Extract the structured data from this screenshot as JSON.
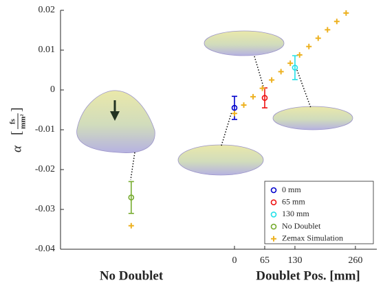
{
  "chart_data": {
    "type": "errorbar-scatter",
    "ylabel_symbol": "α",
    "ylabel_unit_numerator": "fs",
    "ylabel_unit_denominator": "mm²",
    "xlabel_left": "No Doublet",
    "xlabel_right": "Doublet Pos. [mm]",
    "xlim": [
      -374,
      306
    ],
    "xticks": [
      0,
      65,
      130,
      260
    ],
    "ylim": [
      -0.04,
      0.02
    ],
    "yticks": [
      0.02,
      0.01,
      0,
      -0.01,
      -0.02,
      -0.03,
      -0.04
    ],
    "legend": "bottom-right",
    "series": [
      {
        "name": "0 mm",
        "color": "#0000cc",
        "marker": "circle",
        "x": [
          0
        ],
        "values": [
          -0.0045
        ],
        "errors": [
          0.0029
        ]
      },
      {
        "name": "65 mm",
        "color": "#ee1111",
        "marker": "circle",
        "x": [
          65
        ],
        "values": [
          -0.002
        ],
        "errors": [
          0.0025
        ]
      },
      {
        "name": "130 mm",
        "color": "#22e0e8",
        "marker": "circle",
        "x": [
          130
        ],
        "values": [
          0.0056
        ],
        "errors": [
          0.003
        ]
      },
      {
        "name": "No Doublet",
        "color": "#77ac30",
        "marker": "circle",
        "x": [
          -222
        ],
        "values": [
          -0.027
        ],
        "errors": [
          0.004
        ]
      },
      {
        "name": "Zemax Simulation",
        "color": "#edb120",
        "marker": "plus",
        "x": [
          -222,
          0,
          20,
          40,
          60,
          80,
          100,
          120,
          140,
          160,
          180,
          200,
          220,
          240
        ],
        "values": [
          -0.0341,
          -0.0059,
          -0.0038,
          -0.0017,
          0.0004,
          0.0025,
          0.0046,
          0.0067,
          0.0088,
          0.0109,
          0.013,
          0.0151,
          0.0172,
          0.0193
        ]
      }
    ]
  }
}
